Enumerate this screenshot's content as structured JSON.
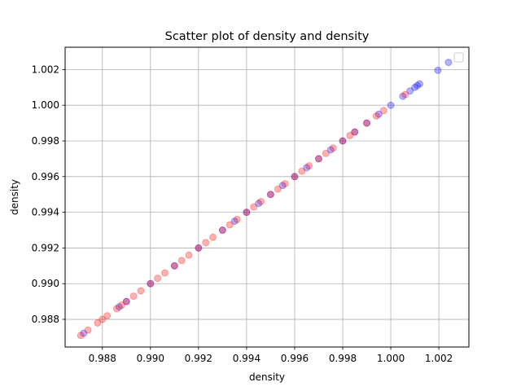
{
  "chart_data": {
    "type": "scatter",
    "title": "Scatter plot of density and density",
    "xlabel": "density",
    "ylabel": "density",
    "xlim": [
      0.98645,
      1.00325
    ],
    "ylim": [
      0.98645,
      1.00325
    ],
    "grid": true,
    "legend": {
      "placement": "top-right",
      "entries": []
    },
    "x_ticks": [
      "0.988",
      "0.990",
      "0.992",
      "0.994",
      "0.996",
      "0.998",
      "1.000",
      "1.002"
    ],
    "y_ticks": [
      "0.988",
      "0.990",
      "0.992",
      "0.994",
      "0.996",
      "0.998",
      "1.000",
      "1.002"
    ],
    "tick_values": [
      0.988,
      0.99,
      0.992,
      0.994,
      0.996,
      0.998,
      1.0,
      1.002
    ],
    "series": [
      {
        "color": "#0000ff",
        "alpha": 0.3,
        "x": [
          0.98722,
          0.9887,
          0.989,
          0.99,
          0.991,
          0.992,
          0.993,
          0.9935,
          0.994,
          0.9945,
          0.995,
          0.9955,
          0.996,
          0.9965,
          0.997,
          0.9975,
          0.998,
          0.9985,
          0.999,
          0.9995,
          1.0,
          1.0005,
          1.0008,
          1.001,
          1.0011,
          1.0012,
          1.00196,
          1.0024
        ],
        "y": [
          0.98722,
          0.9887,
          0.989,
          0.99,
          0.991,
          0.992,
          0.993,
          0.9935,
          0.994,
          0.9945,
          0.995,
          0.9955,
          0.996,
          0.9965,
          0.997,
          0.9975,
          0.998,
          0.9985,
          0.999,
          0.9995,
          1.0,
          1.0005,
          1.0008,
          1.001,
          1.0011,
          1.0012,
          1.00196,
          1.0024
        ]
      },
      {
        "color": "#ff0000",
        "alpha": 0.3,
        "x": [
          0.9871,
          0.9874,
          0.9878,
          0.988,
          0.9882,
          0.9886,
          0.9888,
          0.989,
          0.9893,
          0.9896,
          0.99,
          0.9903,
          0.9906,
          0.991,
          0.9913,
          0.9916,
          0.992,
          0.9923,
          0.9926,
          0.993,
          0.9933,
          0.9936,
          0.994,
          0.9943,
          0.9946,
          0.995,
          0.9953,
          0.9956,
          0.996,
          0.9963,
          0.9966,
          0.997,
          0.9973,
          0.9976,
          0.998,
          0.9983,
          0.9985,
          0.999,
          0.9994,
          0.9997,
          1.0006
        ],
        "y": [
          0.9871,
          0.9874,
          0.9878,
          0.988,
          0.9882,
          0.9886,
          0.9888,
          0.989,
          0.9893,
          0.9896,
          0.99,
          0.9903,
          0.9906,
          0.991,
          0.9913,
          0.9916,
          0.992,
          0.9923,
          0.9926,
          0.993,
          0.9933,
          0.9936,
          0.994,
          0.9943,
          0.9946,
          0.995,
          0.9953,
          0.9956,
          0.996,
          0.9963,
          0.9966,
          0.997,
          0.9973,
          0.9976,
          0.998,
          0.9983,
          0.9985,
          0.999,
          0.9994,
          0.9997,
          1.0006
        ]
      }
    ]
  }
}
